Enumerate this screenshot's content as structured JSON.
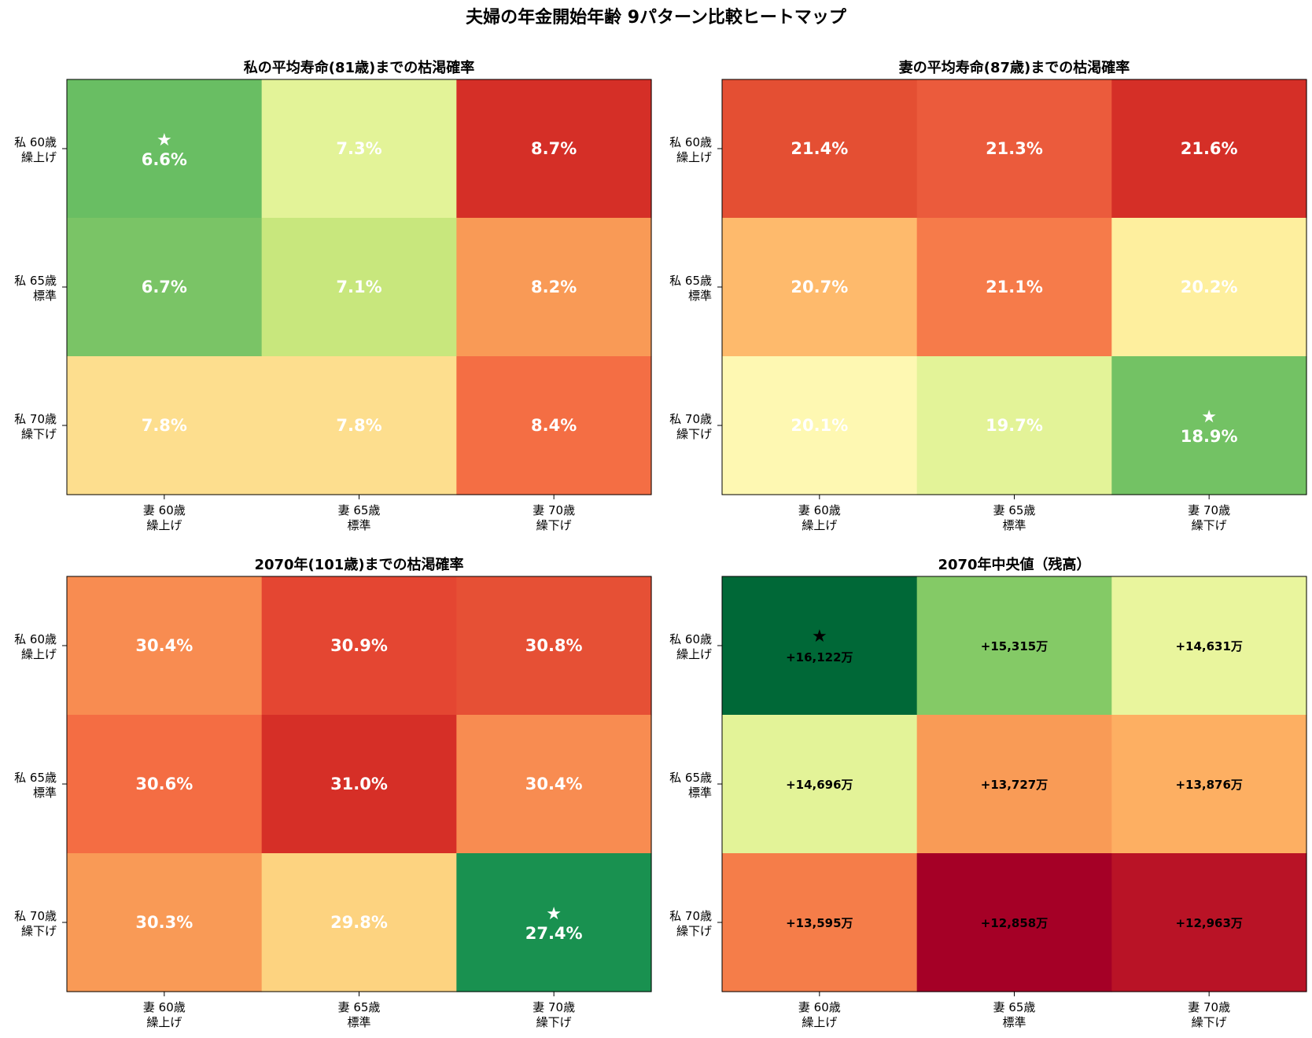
{
  "figure_title": "夫婦の年金開始年齢 9パターン比較ヒートマップ",
  "best_marker": "★",
  "chart_data": [
    {
      "type": "heatmap",
      "title": "私の平均寿命(81歳)までの枯渇確率",
      "x_categories": [
        [
          "妻 60歳",
          "繰上げ"
        ],
        [
          "妻 65歳",
          "標準"
        ],
        [
          "妻 70歳",
          "繰下げ"
        ]
      ],
      "y_categories": [
        [
          "私 60歳",
          "繰上げ"
        ],
        [
          "私 65歳",
          "標準"
        ],
        [
          "私 70歳",
          "繰下げ"
        ]
      ],
      "labels": [
        [
          "6.6%",
          "7.3%",
          "8.7%"
        ],
        [
          "6.7%",
          "7.1%",
          "8.2%"
        ],
        [
          "7.8%",
          "7.8%",
          "8.4%"
        ]
      ],
      "values": [
        [
          6.6,
          7.3,
          8.7
        ],
        [
          6.7,
          7.1,
          8.2
        ],
        [
          7.8,
          7.8,
          8.4
        ]
      ],
      "cell_colors": [
        [
          "#69be63",
          "#e3f398",
          "#d52f27"
        ],
        [
          "#7ac466",
          "#c8e77d",
          "#f99a56"
        ],
        [
          "#fdde8e",
          "#fdde8e",
          "#f46e44"
        ]
      ],
      "text_color": "#ffffff",
      "best_cell": [
        0,
        0
      ],
      "cmap": "RdYlGn_r"
    },
    {
      "type": "heatmap",
      "title": "妻の平均寿命(87歳)までの枯渇確率",
      "x_categories": [
        [
          "妻 60歳",
          "繰上げ"
        ],
        [
          "妻 65歳",
          "標準"
        ],
        [
          "妻 70歳",
          "繰下げ"
        ]
      ],
      "y_categories": [
        [
          "私 60歳",
          "繰上げ"
        ],
        [
          "私 65歳",
          "標準"
        ],
        [
          "私 70歳",
          "繰下げ"
        ]
      ],
      "labels": [
        [
          "21.4%",
          "21.3%",
          "21.6%"
        ],
        [
          "20.7%",
          "21.1%",
          "20.2%"
        ],
        [
          "20.1%",
          "19.7%",
          "18.9%"
        ]
      ],
      "values": [
        [
          21.4,
          21.3,
          21.6
        ],
        [
          20.7,
          21.1,
          20.2
        ],
        [
          20.1,
          19.7,
          18.9
        ]
      ],
      "cell_colors": [
        [
          "#e44f33",
          "#eb5b3c",
          "#d52f27"
        ],
        [
          "#feba6c",
          "#f67b4a",
          "#feef9e"
        ],
        [
          "#fef8b2",
          "#e3f398",
          "#73c264"
        ]
      ],
      "text_color": "#ffffff",
      "best_cell": [
        2,
        2
      ],
      "cmap": "RdYlGn_r"
    },
    {
      "type": "heatmap",
      "title": "2070年(101歳)までの枯渇確率",
      "x_categories": [
        [
          "妻 60歳",
          "繰上げ"
        ],
        [
          "妻 65歳",
          "標準"
        ],
        [
          "妻 70歳",
          "繰下げ"
        ]
      ],
      "y_categories": [
        [
          "私 60歳",
          "繰上げ"
        ],
        [
          "私 65歳",
          "標準"
        ],
        [
          "私 70歳",
          "繰下げ"
        ]
      ],
      "labels": [
        [
          "30.4%",
          "30.9%",
          "30.8%"
        ],
        [
          "30.6%",
          "31.0%",
          "30.4%"
        ],
        [
          "30.3%",
          "29.8%",
          "27.4%"
        ]
      ],
      "values": [
        [
          30.4,
          30.9,
          30.8
        ],
        [
          30.6,
          31.0,
          30.4
        ],
        [
          30.3,
          29.8,
          27.4
        ]
      ],
      "cell_colors": [
        [
          "#f88c51",
          "#e44632",
          "#e65035"
        ],
        [
          "#f46d43",
          "#d62f27",
          "#f88c51"
        ],
        [
          "#f99a56",
          "#fdd380",
          "#199150"
        ]
      ],
      "text_color": "#ffffff",
      "best_cell": [
        2,
        2
      ],
      "cmap": "RdYlGn_r"
    },
    {
      "type": "heatmap",
      "title": "2070年中央値（残高）",
      "x_categories": [
        [
          "妻 60歳",
          "繰上げ"
        ],
        [
          "妻 65歳",
          "標準"
        ],
        [
          "妻 70歳",
          "繰下げ"
        ]
      ],
      "y_categories": [
        [
          "私 60歳",
          "繰上げ"
        ],
        [
          "私 65歳",
          "標準"
        ],
        [
          "私 70歳",
          "繰下げ"
        ]
      ],
      "labels": [
        [
          "+16,122万",
          "+15,315万",
          "+14,631万"
        ],
        [
          "+14,696万",
          "+13,727万",
          "+13,876万"
        ],
        [
          "+13,595万",
          "+12,858万",
          "+12,963万"
        ]
      ],
      "values": [
        [
          16122,
          15315,
          14631
        ],
        [
          14696,
          13727,
          13876
        ],
        [
          13595,
          12858,
          12963
        ]
      ],
      "unit": "万",
      "cell_colors": [
        [
          "#006837",
          "#84ca66",
          "#e9f59d"
        ],
        [
          "#e3f398",
          "#f99b56",
          "#fdaf62"
        ],
        [
          "#f57d49",
          "#a50026",
          "#b91326"
        ]
      ],
      "text_color": "#000000",
      "best_cell": [
        0,
        0
      ],
      "cmap": "RdYlGn"
    }
  ]
}
